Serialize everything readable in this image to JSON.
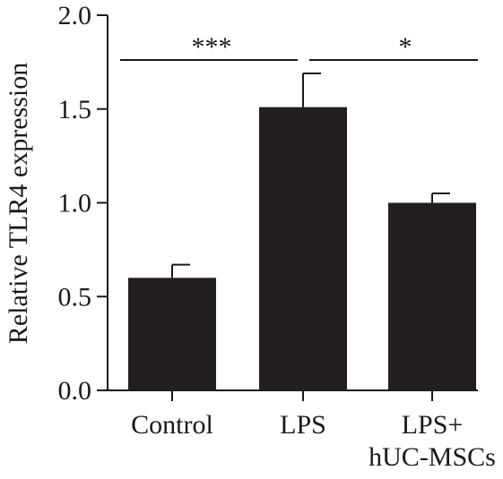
{
  "chart_data": {
    "type": "bar",
    "title": "",
    "xlabel": "",
    "ylabel": "Relative TLR4 expression",
    "ylim": [
      0,
      2.0
    ],
    "yticks": [
      "0.0",
      "0.5",
      "1.0",
      "1.5",
      "2.0"
    ],
    "categories": [
      [
        "Control"
      ],
      [
        "LPS"
      ],
      [
        "LPS+",
        "hUC-MSCs"
      ]
    ],
    "values": [
      0.6,
      1.51,
      1.0
    ],
    "error_upper": [
      0.07,
      0.18,
      0.05
    ],
    "bar_color": "#231f20",
    "grid": false,
    "significance": [
      {
        "from": 0,
        "to": 1,
        "label": "***"
      },
      {
        "from": 1,
        "to": 2,
        "label": "*"
      }
    ]
  }
}
